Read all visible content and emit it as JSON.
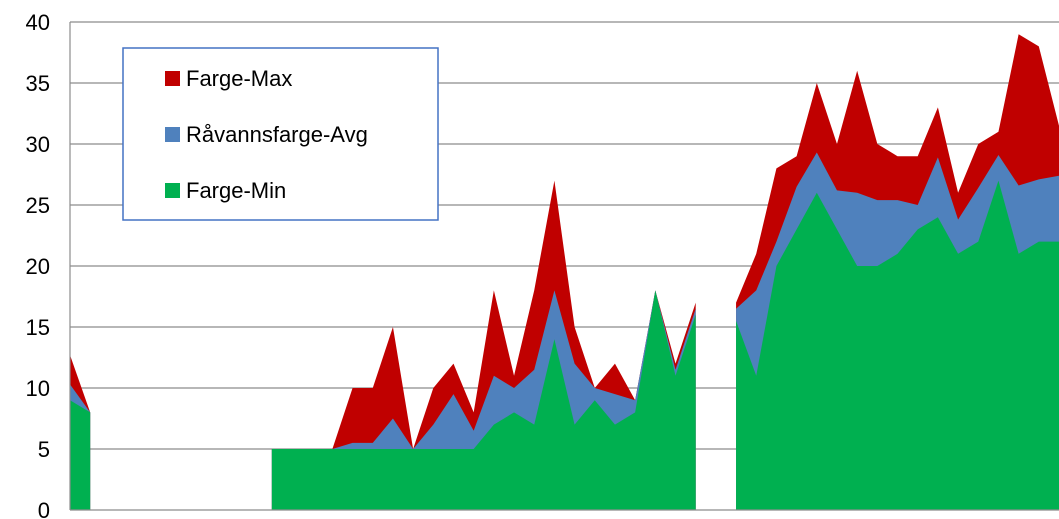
{
  "chart_data": {
    "type": "area",
    "title": "",
    "xlabel": "",
    "ylabel": "",
    "ylim": [
      0,
      40
    ],
    "yticks": [
      0,
      5,
      10,
      15,
      20,
      25,
      30,
      35,
      40
    ],
    "grid": true,
    "legend_position": "top-left",
    "series": [
      {
        "name": "Farge-Max",
        "color": "#C00000",
        "values": [
          12.7,
          8,
          null,
          null,
          null,
          null,
          null,
          null,
          null,
          null,
          5,
          5,
          5,
          5,
          10,
          10,
          15,
          5,
          10,
          12,
          8,
          18,
          11,
          18,
          27,
          15,
          10,
          12,
          9,
          18,
          12,
          17,
          null,
          17,
          21,
          28,
          29,
          35,
          30,
          36,
          30,
          29,
          29,
          33,
          26,
          30,
          31,
          39,
          38,
          31.5
        ]
      },
      {
        "name": "Råvannsfarge-Avg",
        "color": "#4F81BD",
        "values": [
          10.3,
          8,
          null,
          null,
          null,
          null,
          null,
          null,
          null,
          null,
          5,
          5,
          5,
          5,
          5.5,
          5.5,
          7.5,
          5,
          7,
          9.5,
          6.5,
          11,
          10,
          11.5,
          18,
          12,
          10,
          9.5,
          9,
          18,
          11.5,
          16.5,
          null,
          16.5,
          18,
          22,
          26.5,
          29.3,
          26.2,
          26,
          25.4,
          25.4,
          25,
          28.9,
          23.8,
          26.4,
          29.1,
          26.6,
          27.1,
          27.4
        ]
      },
      {
        "name": "Farge-Min",
        "color": "#00B050",
        "values": [
          9,
          8,
          null,
          null,
          null,
          null,
          null,
          null,
          null,
          null,
          5,
          5,
          5,
          5,
          5,
          5,
          5,
          5,
          5,
          5,
          5,
          7,
          8,
          7,
          14,
          7,
          9,
          7,
          8,
          18,
          11,
          16,
          null,
          15.5,
          11,
          20,
          23,
          26,
          23,
          20,
          20,
          21,
          23,
          24,
          21,
          22,
          27,
          21,
          22,
          22
        ]
      }
    ]
  }
}
